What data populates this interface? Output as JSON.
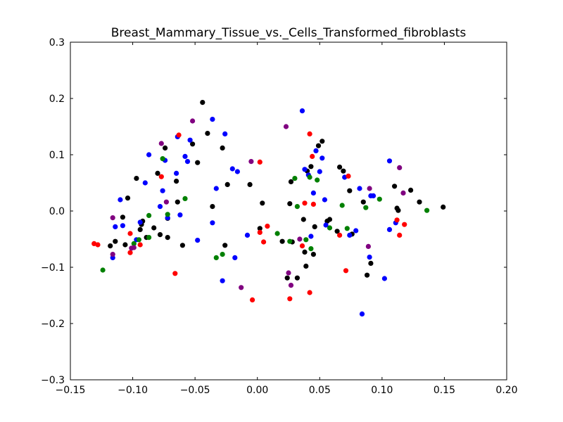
{
  "chart_data": {
    "type": "scatter",
    "title": "Breast_Mammary_Tissue_vs._Cells_Transformed_fibroblasts",
    "xlabel": "",
    "ylabel": "",
    "xlim": [
      -0.15,
      0.2
    ],
    "ylim": [
      -0.3,
      0.3
    ],
    "x_ticks": [
      -0.15,
      -0.1,
      -0.05,
      0.0,
      0.05,
      0.1,
      0.15,
      0.2
    ],
    "x_tick_labels": [
      "−0.15",
      "−0.10",
      "−0.05",
      "0.00",
      "0.05",
      "0.10",
      "0.15",
      "0.20"
    ],
    "y_ticks": [
      -0.3,
      -0.2,
      -0.1,
      0.0,
      0.1,
      0.2,
      0.3
    ],
    "y_tick_labels": [
      "−0.3",
      "−0.2",
      "−0.1",
      "0.0",
      "0.1",
      "0.2",
      "0.3"
    ],
    "grid": false,
    "legend": "none",
    "series": [
      {
        "color": "#000000",
        "points": [
          [
            -0.118,
            -0.062
          ],
          [
            -0.114,
            -0.054
          ],
          [
            -0.108,
            -0.011
          ],
          [
            -0.106,
            -0.06
          ],
          [
            -0.104,
            0.023
          ],
          [
            -0.097,
            0.058
          ],
          [
            -0.094,
            -0.033
          ],
          [
            -0.093,
            -0.024
          ],
          [
            -0.092,
            -0.018
          ],
          [
            -0.089,
            -0.047
          ],
          [
            -0.083,
            -0.03
          ],
          [
            -0.08,
            0.067
          ],
          [
            -0.078,
            -0.042
          ],
          [
            -0.074,
            0.112
          ],
          [
            -0.072,
            -0.047
          ],
          [
            -0.072,
            -0.013
          ],
          [
            -0.065,
            0.053
          ],
          [
            -0.064,
            0.016
          ],
          [
            -0.06,
            -0.061
          ],
          [
            -0.052,
            0.119
          ],
          [
            -0.048,
            0.086
          ],
          [
            -0.044,
            0.193
          ],
          [
            -0.04,
            0.138
          ],
          [
            -0.036,
            0.008
          ],
          [
            -0.028,
            0.112
          ],
          [
            -0.026,
            -0.061
          ],
          [
            -0.024,
            0.047
          ],
          [
            -0.006,
            0.047
          ],
          [
            0.002,
            -0.031
          ],
          [
            0.004,
            0.014
          ],
          [
            0.02,
            -0.054
          ],
          [
            0.024,
            -0.119
          ],
          [
            0.026,
            0.013
          ],
          [
            0.027,
            0.052
          ],
          [
            0.028,
            -0.055
          ],
          [
            0.032,
            -0.119
          ],
          [
            0.037,
            -0.015
          ],
          [
            0.038,
            -0.073
          ],
          [
            0.039,
            -0.098
          ],
          [
            0.04,
            0.071
          ],
          [
            0.043,
            0.079
          ],
          [
            0.045,
            -0.077
          ],
          [
            0.046,
            -0.028
          ],
          [
            0.049,
            0.116
          ],
          [
            0.052,
            0.124
          ],
          [
            0.056,
            -0.018
          ],
          [
            0.058,
            -0.015
          ],
          [
            0.064,
            -0.036
          ],
          [
            0.066,
            0.078
          ],
          [
            0.069,
            0.071
          ],
          [
            0.074,
            0.036
          ],
          [
            0.076,
            -0.041
          ],
          [
            0.085,
            0.016
          ],
          [
            0.088,
            -0.114
          ],
          [
            0.091,
            -0.093
          ],
          [
            0.11,
            0.044
          ],
          [
            0.112,
            0.005
          ],
          [
            0.113,
            0.001
          ],
          [
            0.123,
            0.037
          ],
          [
            0.13,
            0.016
          ],
          [
            0.149,
            0.007
          ]
        ]
      },
      {
        "color": "#0000ff",
        "points": [
          [
            -0.116,
            -0.083
          ],
          [
            -0.114,
            -0.028
          ],
          [
            -0.11,
            0.02
          ],
          [
            -0.108,
            -0.026
          ],
          [
            -0.097,
            -0.051
          ],
          [
            -0.094,
            -0.02
          ],
          [
            -0.09,
            0.05
          ],
          [
            -0.087,
            0.1
          ],
          [
            -0.078,
            0.008
          ],
          [
            -0.076,
            0.036
          ],
          [
            -0.074,
            0.09
          ],
          [
            -0.072,
            -0.012
          ],
          [
            -0.065,
            0.067
          ],
          [
            -0.064,
            0.132
          ],
          [
            -0.062,
            -0.007
          ],
          [
            -0.058,
            0.097
          ],
          [
            -0.056,
            0.088
          ],
          [
            -0.054,
            0.126
          ],
          [
            -0.048,
            -0.052
          ],
          [
            -0.036,
            0.163
          ],
          [
            -0.036,
            -0.021
          ],
          [
            -0.033,
            0.04
          ],
          [
            -0.028,
            -0.124
          ],
          [
            -0.026,
            0.137
          ],
          [
            -0.02,
            0.075
          ],
          [
            -0.018,
            -0.083
          ],
          [
            -0.016,
            0.07
          ],
          [
            -0.008,
            -0.043
          ],
          [
            0.036,
            0.178
          ],
          [
            0.038,
            0.074
          ],
          [
            0.041,
            0.064
          ],
          [
            0.043,
            -0.045
          ],
          [
            0.045,
            0.032
          ],
          [
            0.047,
            0.107
          ],
          [
            0.05,
            0.07
          ],
          [
            0.052,
            0.094
          ],
          [
            0.054,
            0.02
          ],
          [
            0.055,
            -0.025
          ],
          [
            0.07,
            0.06
          ],
          [
            0.074,
            -0.043
          ],
          [
            0.079,
            -0.035
          ],
          [
            0.082,
            0.04
          ],
          [
            0.084,
            -0.183
          ],
          [
            0.09,
            -0.082
          ],
          [
            0.091,
            0.027
          ],
          [
            0.093,
            0.027
          ],
          [
            0.102,
            -0.12
          ],
          [
            0.106,
            0.089
          ],
          [
            0.106,
            -0.033
          ],
          [
            0.111,
            -0.021
          ]
        ]
      },
      {
        "color": "#ff0000",
        "points": [
          [
            -0.131,
            -0.058
          ],
          [
            -0.128,
            -0.06
          ],
          [
            -0.102,
            -0.04
          ],
          [
            -0.102,
            -0.074
          ],
          [
            -0.094,
            -0.06
          ],
          [
            -0.077,
            0.061
          ],
          [
            -0.066,
            -0.111
          ],
          [
            -0.063,
            0.135
          ],
          [
            -0.004,
            -0.158
          ],
          [
            0.002,
            0.087
          ],
          [
            0.002,
            -0.038
          ],
          [
            0.005,
            -0.055
          ],
          [
            0.008,
            -0.027
          ],
          [
            0.026,
            -0.156
          ],
          [
            0.036,
            -0.062
          ],
          [
            0.038,
            0.014
          ],
          [
            0.042,
            -0.145
          ],
          [
            0.042,
            0.137
          ],
          [
            0.044,
            0.097
          ],
          [
            0.045,
            0.012
          ],
          [
            0.066,
            -0.043
          ],
          [
            0.071,
            -0.106
          ],
          [
            0.073,
            0.062
          ],
          [
            0.112,
            -0.016
          ],
          [
            0.114,
            -0.043
          ],
          [
            0.118,
            -0.024
          ]
        ]
      },
      {
        "color": "#008000",
        "points": [
          [
            -0.124,
            -0.105
          ],
          [
            -0.099,
            -0.058
          ],
          [
            -0.095,
            -0.051
          ],
          [
            -0.087,
            -0.008
          ],
          [
            -0.087,
            -0.047
          ],
          [
            -0.076,
            0.093
          ],
          [
            -0.072,
            -0.006
          ],
          [
            -0.058,
            0.022
          ],
          [
            -0.033,
            -0.083
          ],
          [
            -0.028,
            -0.077
          ],
          [
            0.016,
            -0.04
          ],
          [
            0.026,
            -0.054
          ],
          [
            0.03,
            0.058
          ],
          [
            0.032,
            0.008
          ],
          [
            0.039,
            -0.051
          ],
          [
            0.042,
            0.06
          ],
          [
            0.043,
            -0.067
          ],
          [
            0.048,
            0.055
          ],
          [
            0.058,
            -0.03
          ],
          [
            0.068,
            0.01
          ],
          [
            0.072,
            -0.031
          ],
          [
            0.087,
            0.006
          ],
          [
            0.098,
            0.021
          ],
          [
            0.136,
            0.001
          ]
        ]
      },
      {
        "color": "#800080",
        "points": [
          [
            -0.116,
            -0.012
          ],
          [
            -0.116,
            -0.077
          ],
          [
            -0.101,
            -0.066
          ],
          [
            -0.099,
            -0.065
          ],
          [
            -0.077,
            0.12
          ],
          [
            -0.073,
            0.016
          ],
          [
            -0.052,
            0.16
          ],
          [
            -0.013,
            -0.136
          ],
          [
            -0.005,
            0.088
          ],
          [
            0.023,
            0.15
          ],
          [
            0.025,
            -0.11
          ],
          [
            0.027,
            -0.132
          ],
          [
            0.034,
            -0.05
          ],
          [
            0.089,
            -0.063
          ],
          [
            0.09,
            0.04
          ],
          [
            0.114,
            0.077
          ],
          [
            0.117,
            0.032
          ]
        ]
      }
    ]
  }
}
